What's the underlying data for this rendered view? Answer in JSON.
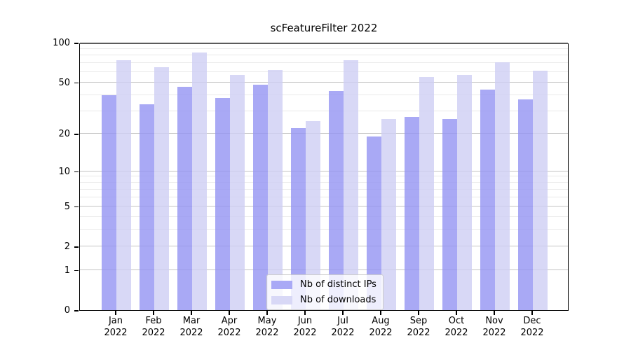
{
  "figure": {
    "title": "scFeatureFilter 2022"
  },
  "legend": {
    "items": [
      {
        "label": "Nb of distinct IPs",
        "color": "#a9a9f6"
      },
      {
        "label": "Nb of downloads",
        "color": "#d8d8f6"
      }
    ]
  },
  "chart_data": {
    "type": "bar",
    "title": "scFeatureFilter 2022",
    "categories": [
      "Jan",
      "Feb",
      "Mar",
      "Apr",
      "May",
      "Jun",
      "Jul",
      "Aug",
      "Sep",
      "Oct",
      "Nov",
      "Dec"
    ],
    "category_year": "2022",
    "series": [
      {
        "name": "Nb of distinct IPs",
        "color": "#a9a9f6",
        "fill": "rgba(147,147,243,0.8)",
        "values": [
          40,
          34,
          46,
          38,
          48,
          22,
          43,
          19,
          27,
          26,
          44,
          37
        ]
      },
      {
        "name": "Nb of downloads",
        "color": "#d8d8f6",
        "fill": "rgba(206,206,244,0.8)",
        "values": [
          74,
          65,
          84,
          57,
          62,
          25,
          74,
          26,
          55,
          57,
          71,
          61
        ]
      }
    ],
    "yscale": "log1p",
    "ylim": [
      0,
      100
    ],
    "yticks": [
      0,
      1,
      2,
      5,
      10,
      20,
      50,
      100
    ],
    "minor_yticks": [
      3,
      4,
      6,
      7,
      8,
      9,
      30,
      40,
      60,
      70,
      80,
      90
    ],
    "grid": true,
    "legend_position": "lower center"
  },
  "colors": {
    "major_grid": "#c3c3c3",
    "minor_grid": "#eaeaea",
    "spine": "#000000",
    "text": "#000000",
    "legend_border": "#cccccc",
    "legend_background": "rgba(255,255,255,0.8)"
  }
}
